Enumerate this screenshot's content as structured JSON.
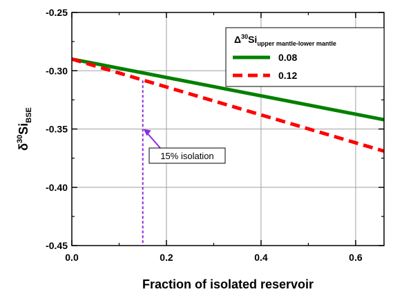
{
  "chart_data": {
    "type": "line",
    "xlabel": "Fraction of isolated reservoir",
    "ylabel": {
      "delta": "δ",
      "sup": "30",
      "base": "Si",
      "sub": "BSE"
    },
    "xlim": [
      0,
      0.66
    ],
    "ylim": [
      -0.45,
      -0.25
    ],
    "x_ticks": [
      0.0,
      0.2,
      0.4,
      0.6
    ],
    "x_tick_labels": [
      "0.0",
      "0.2",
      "0.4",
      "0.6"
    ],
    "y_ticks": [
      -0.45,
      -0.4,
      -0.35,
      -0.3,
      -0.25
    ],
    "y_tick_labels": [
      "-0.45",
      "-0.40",
      "-0.35",
      "-0.30",
      "-0.25"
    ],
    "grid": true,
    "legend": {
      "position": "top-right",
      "title": {
        "delta": "Δ",
        "sup": "30",
        "base": "Si",
        "sub": "upper mantle-lower mantle"
      }
    },
    "series": [
      {
        "name": "0.08",
        "color": "#008000",
        "style": "solid",
        "x": [
          0,
          0.66
        ],
        "y": [
          -0.29,
          -0.342
        ]
      },
      {
        "name": "0.12",
        "color": "#ff0000",
        "style": "dashed",
        "x": [
          0,
          0.66
        ],
        "y": [
          -0.29,
          -0.369
        ]
      }
    ],
    "annotation": {
      "text": "15% isolation",
      "color": "#8a2be2",
      "x": 0.15,
      "y_top": -0.3083,
      "y_arrow_tip": -0.35
    }
  }
}
